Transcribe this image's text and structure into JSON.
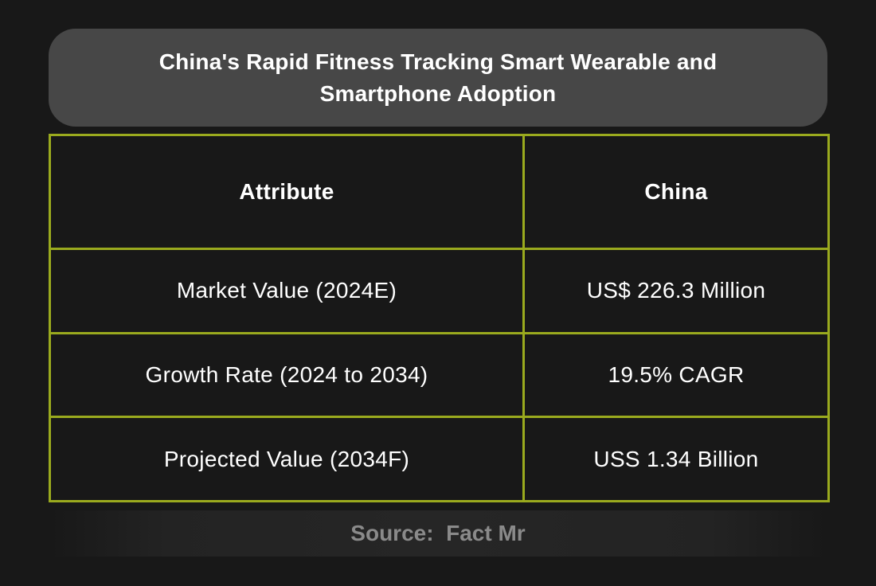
{
  "title": "China's Rapid Fitness Tracking Smart Wearable and Smartphone Adoption",
  "table": {
    "headers": [
      "Attribute",
      "China"
    ],
    "rows": [
      [
        "Market Value (2024E)",
        "US$ 226.3 Million"
      ],
      [
        "Growth Rate (2024 to 2034)",
        "19.5% CAGR"
      ],
      [
        "Projected Value (2034F)",
        "USS 1.34 Billion"
      ]
    ]
  },
  "source": "Source:  Fact Mr",
  "colors": {
    "background": "#181818",
    "title_box": "#474747",
    "table_border": "#9aaa1e",
    "text": "#ffffff",
    "source_text": "#8a8a8a"
  }
}
